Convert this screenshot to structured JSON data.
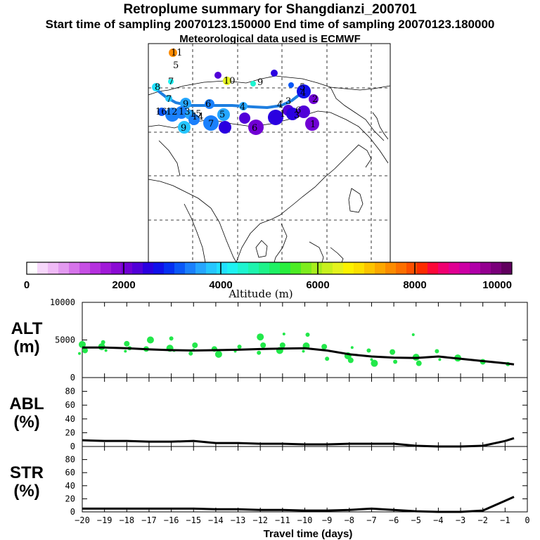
{
  "header": {
    "title": "Retroplume summary for Shangdianzi_200701",
    "subtitle": "Start time of sampling 20070123.150000     End time of sampling 20070123.180000",
    "met_note": "Meteorological data used is ECMWF"
  },
  "colorbar": {
    "label": "Altitude (m)",
    "ticks": [
      "0",
      "2000",
      "4000",
      "6000",
      "8000",
      "10000"
    ],
    "range": [
      0,
      10000
    ],
    "colors": [
      "#ffffff",
      "#f7d7fb",
      "#efbaf6",
      "#e39af0",
      "#d674ea",
      "#c64fe4",
      "#b530de",
      "#a11ad8",
      "#8b0ad4",
      "#7000d4",
      "#5100d8",
      "#2a00e0",
      "#1010ea",
      "#0530f2",
      "#0a58f8",
      "#1a80fc",
      "#25a6ff",
      "#25c6ff",
      "#21e0ff",
      "#1ff2f2",
      "#1ef4d0",
      "#1ef4ae",
      "#1ef28a",
      "#1ef064",
      "#28ee3e",
      "#4cec24",
      "#7eec1e",
      "#a8ee1e",
      "#c8f01e",
      "#e4f21e",
      "#fcf200",
      "#fce000",
      "#fcc400",
      "#fca800",
      "#fc8c00",
      "#fc7000",
      "#fc5000",
      "#fc2c00",
      "#fc0838",
      "#f00070",
      "#e00092",
      "#cc00a4",
      "#b000a8",
      "#940090",
      "#7a007a",
      "#60005e"
    ]
  },
  "map": {
    "route_color": "#1e7ee0",
    "labels": [
      "11",
      "5",
      "7",
      "10",
      "9",
      "8",
      "7",
      "9",
      "6",
      "5",
      "4",
      "16",
      "12",
      "13",
      "15",
      "14",
      "9",
      "7",
      "6",
      "4",
      "3",
      "6",
      "3",
      "1",
      "5",
      "4",
      "1",
      "2"
    ]
  },
  "chart_data": [
    {
      "type": "line",
      "panel": "ALT",
      "ylabel_top": "ALT",
      "ylabel_bottom": "(m)",
      "yticks": [
        "10000",
        "5000",
        "0"
      ],
      "ylim": [
        0,
        10000
      ],
      "x": [
        -20,
        -19,
        -18,
        -17,
        -16,
        -15,
        -14,
        -13,
        -12,
        -11,
        -10,
        -9,
        -8,
        -7,
        -6,
        -5,
        -4,
        -3,
        -2,
        -1,
        -0.6
      ],
      "values": [
        4000,
        4000,
        3900,
        3750,
        3650,
        3600,
        3650,
        3700,
        3800,
        3850,
        3900,
        3600,
        3100,
        2800,
        2650,
        2600,
        2800,
        2500,
        2200,
        1900,
        1750
      ],
      "scatter_color": "#22e84a",
      "scatter": [
        {
          "x": -20,
          "y": 3200
        },
        {
          "x": -20,
          "y": 4400
        },
        {
          "x": -20,
          "y": 3600
        },
        {
          "x": -19,
          "y": 4700
        },
        {
          "x": -19,
          "y": 3600
        },
        {
          "x": -19,
          "y": 4100
        },
        {
          "x": -18,
          "y": 4500
        },
        {
          "x": -18,
          "y": 3900
        },
        {
          "x": -18,
          "y": 3500
        },
        {
          "x": -17,
          "y": 5000
        },
        {
          "x": -17,
          "y": 3800
        },
        {
          "x": -16,
          "y": 5200
        },
        {
          "x": -16,
          "y": 3600
        },
        {
          "x": -16,
          "y": 3900
        },
        {
          "x": -15,
          "y": 4300
        },
        {
          "x": -15,
          "y": 3200
        },
        {
          "x": -15,
          "y": 3700
        },
        {
          "x": -14,
          "y": 3100
        },
        {
          "x": -14,
          "y": 3800
        },
        {
          "x": -13,
          "y": 4100
        },
        {
          "x": -13,
          "y": 3500
        },
        {
          "x": -12,
          "y": 5400
        },
        {
          "x": -12,
          "y": 4300
        },
        {
          "x": -12,
          "y": 3300
        },
        {
          "x": -11,
          "y": 5800
        },
        {
          "x": -11,
          "y": 3600
        },
        {
          "x": -11,
          "y": 4300
        },
        {
          "x": -10,
          "y": 5700
        },
        {
          "x": -10,
          "y": 3500
        },
        {
          "x": -10,
          "y": 4200
        },
        {
          "x": -9,
          "y": 4100
        },
        {
          "x": -9,
          "y": 2500
        },
        {
          "x": -8,
          "y": 4000
        },
        {
          "x": -8,
          "y": 2900
        },
        {
          "x": -8,
          "y": 2300
        },
        {
          "x": -7,
          "y": 3600
        },
        {
          "x": -7,
          "y": 2400
        },
        {
          "x": -7,
          "y": 1900
        },
        {
          "x": -6,
          "y": 3400
        },
        {
          "x": -6,
          "y": 2100
        },
        {
          "x": -5,
          "y": 5700
        },
        {
          "x": -5,
          "y": 2700
        },
        {
          "x": -5,
          "y": 1900
        },
        {
          "x": -4,
          "y": 3500
        },
        {
          "x": -4,
          "y": 2400
        },
        {
          "x": -3,
          "y": 2600
        },
        {
          "x": -2,
          "y": 2100
        },
        {
          "x": -1,
          "y": 1800
        }
      ]
    },
    {
      "type": "line",
      "panel": "ABL",
      "ylabel_top": "ABL",
      "ylabel_bottom": "(%)",
      "yticks": [
        "80",
        "60",
        "40",
        "20",
        "0"
      ],
      "ylim": [
        0,
        100
      ],
      "x": [
        -20,
        -19,
        -18,
        -17,
        -16,
        -15,
        -14,
        -13,
        -12,
        -11,
        -10,
        -9,
        -8,
        -7,
        -6,
        -5,
        -4,
        -3,
        -2,
        -1,
        -0.6
      ],
      "values": [
        9,
        8,
        8,
        7,
        7,
        8,
        5,
        5,
        4,
        4,
        3,
        3,
        4,
        4,
        4,
        1,
        0,
        0,
        1,
        8,
        12
      ]
    },
    {
      "type": "line",
      "panel": "STR",
      "ylabel_top": "STR",
      "ylabel_bottom": "(%)",
      "yticks": [
        "80",
        "60",
        "40",
        "20",
        "0"
      ],
      "ylim": [
        0,
        100
      ],
      "x": [
        -20,
        -19,
        -18,
        -17,
        -16,
        -15,
        -14,
        -13,
        -12,
        -11,
        -10,
        -9,
        -8,
        -7,
        -6,
        -5,
        -4,
        -3,
        -2,
        -1,
        -0.6
      ],
      "values": [
        5,
        5,
        5,
        5,
        5,
        5,
        4,
        4,
        3,
        3,
        2,
        2,
        3,
        5,
        3,
        1,
        0,
        0,
        2,
        17,
        23
      ],
      "xlabel": "Travel time (days)",
      "xticks": [
        "−20",
        "−19",
        "−18",
        "−17",
        "−16",
        "−15",
        "−14",
        "−13",
        "−12",
        "−11",
        "−10",
        "−9",
        "−8",
        "−7",
        "−6",
        "−5",
        "−4",
        "−3",
        "−2",
        "−1",
        "0"
      ]
    }
  ]
}
